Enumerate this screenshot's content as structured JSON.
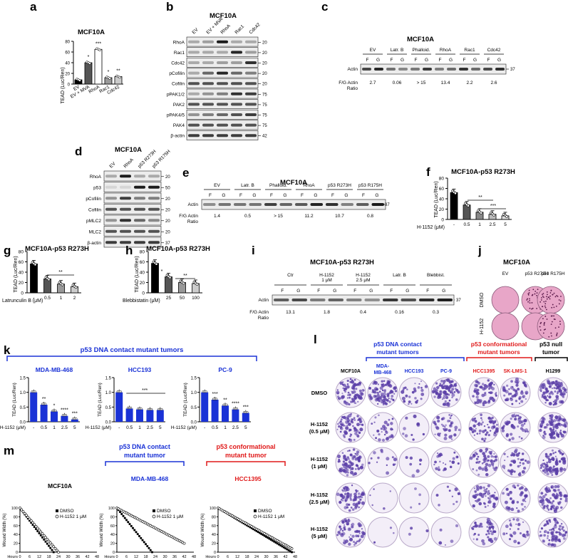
{
  "panels": {
    "a": {
      "label": "a",
      "title": "MCF10A",
      "ylabel": "TEAD (Luc/Ren)",
      "categories": [
        "EV",
        "EV + MVA",
        "RhoA",
        "Rac1",
        "Cdc42"
      ],
      "values": [
        8,
        40,
        65,
        12,
        14
      ],
      "ylim": [
        0,
        80
      ],
      "yticks": [
        "0",
        "20",
        "40",
        "60",
        "80"
      ],
      "sig": [
        "",
        "*",
        "***",
        "*",
        "**"
      ],
      "colors": [
        "#000000",
        "#555555",
        "#ffffff",
        "#999999",
        "#cccccc"
      ]
    },
    "b": {
      "label": "b",
      "title": "MCF10A",
      "lanes": [
        "EV",
        "EV + MVA",
        "RhoA",
        "Rac1",
        "Cdc42"
      ],
      "rows": [
        "RhoA",
        "Rac1",
        "Cdc42",
        "pCofilin",
        "Cofilin",
        "pPAK1/2",
        "PAK2",
        "pPAK4/5",
        "PAK4",
        "β-actin"
      ],
      "mw": [
        "20",
        "20",
        "20",
        "20",
        "20",
        "75",
        "75",
        "75",
        "75",
        "42"
      ]
    },
    "c": {
      "label": "c",
      "title": "MCF10A",
      "groups": [
        "EV",
        "Latr. B",
        "Phalloid.",
        "RhoA",
        "Rac1",
        "Cdc42"
      ],
      "fg": [
        "F",
        "G"
      ],
      "row": "Actin",
      "mw": "37",
      "ratio_label_1": "F/G Actin",
      "ratio_label_2": "Ratio",
      "ratios": [
        "2.7",
        "0.06",
        "> 15",
        "13.4",
        "2.2",
        "2.6"
      ]
    },
    "d": {
      "label": "d",
      "title": "MCF10A",
      "lanes": [
        "EV",
        "RhoA",
        "p53 R273H",
        "p53 R175H"
      ],
      "rows": [
        "RhoA",
        "p53",
        "pCofilin",
        "Cofilin",
        "pMLC2",
        "MLC2",
        "β-actin"
      ],
      "mw": [
        "20",
        "50",
        "20",
        "20",
        "20",
        "20",
        "37"
      ]
    },
    "e": {
      "label": "e",
      "title": "MCF10A",
      "groups": [
        "EV",
        "Latr. B",
        "Phalloid.",
        "RhoA",
        "p53 R273H",
        "p53 R175H"
      ],
      "fg": [
        "F",
        "G"
      ],
      "row": "Actin",
      "mw": "37",
      "ratio_label_1": "F/G Actin",
      "ratio_label_2": "Ratio",
      "ratios": [
        "1.4",
        "0.5",
        "> 15",
        "11.2",
        "10.7",
        "0.8"
      ]
    },
    "f": {
      "label": "f",
      "title": "MCF10A-p53 R273H",
      "ylabel": "TEAD (Luc/Ren)",
      "xlabel": "H-1152 (μM)",
      "categories": [
        "-",
        "0.5",
        "1",
        "2.5",
        "5"
      ],
      "values": [
        52,
        28,
        14,
        10,
        7
      ],
      "ylim": [
        0,
        80
      ],
      "yticks": [
        "0",
        "20",
        "40",
        "60",
        "80"
      ],
      "sig_1": "**",
      "sig_2": "***"
    },
    "g": {
      "label": "g",
      "title": "MCF10A-p53 R273H",
      "ylabel": "TEAD (Luc/Ren)",
      "xlabel": "Latrunculin B (μM)",
      "categories": [
        "-",
        "0.5",
        "1",
        "2"
      ],
      "values": [
        56,
        27,
        17,
        12
      ],
      "ylim": [
        0,
        80
      ],
      "yticks": [
        "0",
        "20",
        "40",
        "60",
        "80"
      ],
      "sig": "**"
    },
    "h": {
      "label": "h",
      "title": "MCF10A-p53 R273H",
      "ylabel": "TEAD (Luc/Ren)",
      "xlabel": "Blebbistatin (μM)",
      "categories": [
        "-",
        "25",
        "50",
        "100"
      ],
      "values": [
        57,
        31,
        20,
        18
      ],
      "ylim": [
        0,
        80
      ],
      "yticks": [
        "0",
        "20",
        "40",
        "60",
        "80"
      ],
      "sig_1": "*",
      "sig_2": "**"
    },
    "i": {
      "label": "i",
      "title": "MCF10A-p53 R273H",
      "groups": [
        "Ctr",
        "H-1152\n1 μM",
        "H-1152\n2.5 μM",
        "Latr. B",
        "Blebbist."
      ],
      "groups_l1": [
        "Ctr",
        "H-1152",
        "H-1152",
        "Latr. B",
        "Blebbist."
      ],
      "groups_l2": [
        "",
        "1 μM",
        "2.5 μM",
        "",
        ""
      ],
      "fg": [
        "F",
        "G"
      ],
      "row": "Actin",
      "mw": "37",
      "ratio_label_1": "F/G Actin",
      "ratio_label_2": "Ratio",
      "ratios": [
        "13.1",
        "1.8",
        "0.4",
        "0.16",
        "0.3"
      ]
    },
    "j": {
      "label": "j",
      "title": "MCF10A",
      "cols": [
        "EV",
        "p53 R273H",
        "p53 R175H"
      ],
      "rows": [
        "DMSO",
        "H-1152"
      ]
    },
    "k": {
      "label": "k",
      "group_title": "p53 DNA contact mutant tumors",
      "xlabel": "H-1152 (μM)",
      "ylabel": "TEAD (Luc/Ren)",
      "categories": [
        "-",
        "0.5",
        "1",
        "2.5",
        "5"
      ],
      "yticks": [
        "0.0",
        "0.5",
        "1.0",
        "1.5"
      ],
      "charts": [
        {
          "title": "MDA-MB-468",
          "values": [
            1.0,
            0.58,
            0.35,
            0.2,
            0.08
          ],
          "sig": [
            "",
            "**",
            "*",
            "****",
            "***"
          ]
        },
        {
          "title": "HCC193",
          "values": [
            1.0,
            0.45,
            0.42,
            0.4,
            0.4
          ],
          "sig": [
            "",
            "",
            "",
            "",
            ""
          ],
          "bracket_sig": "***"
        },
        {
          "title": "PC-9",
          "values": [
            1.0,
            0.75,
            0.55,
            0.42,
            0.3
          ],
          "sig": [
            "",
            "***",
            "**",
            "****",
            "***"
          ]
        }
      ]
    },
    "l": {
      "label": "l",
      "group_contact": "p53 DNA contact",
      "group_contact_2": "mutant tumors",
      "group_conf": "p53 conformational",
      "group_conf_2": "mutant tumors",
      "group_null": "p53 null",
      "group_null_2": "tumor",
      "cols": [
        "MCF10A",
        "MDA-\nMB-468",
        "HCC193",
        "PC-9",
        "HCC1395",
        "SK-LMS-1",
        "H1299"
      ],
      "col_l1": [
        "MCF10A",
        "MDA-",
        "HCC193",
        "PC-9",
        "HCC1395",
        "SK-LMS-1",
        "H1299"
      ],
      "col_l2": [
        "",
        "MB-468",
        "",
        "",
        "",
        "",
        ""
      ],
      "rows_l1": [
        "DMSO",
        "H-1152",
        "H-1152",
        "H-1152",
        "H-1152"
      ],
      "rows_l2": [
        "",
        "(0.5 μM)",
        "(1 μM)",
        "(2.5 μM)",
        "(5 μM)"
      ],
      "density": [
        [
          0.85,
          0.95,
          0.3,
          0.9,
          0.7,
          0.6,
          0.9
        ],
        [
          0.8,
          0.35,
          0.12,
          0.45,
          0.65,
          0.5,
          0.85
        ],
        [
          0.75,
          0.15,
          0.08,
          0.25,
          0.6,
          0.45,
          0.85
        ],
        [
          0.75,
          0.05,
          0.04,
          0.1,
          0.55,
          0.4,
          0.8
        ],
        [
          0.7,
          0.03,
          0.03,
          0.05,
          0.5,
          0.3,
          0.75
        ]
      ]
    },
    "m": {
      "label": "m",
      "group_contact": "p53 DNA contact",
      "group_contact_2": "mutant tumor",
      "group_conf": "p53 conformational",
      "group_conf_2": "mutant tumor",
      "ylabel": "Wound Width (%)",
      "xlabel": "Hours",
      "xticks": [
        "0",
        "6",
        "12",
        "18",
        "24",
        "30",
        "36",
        "42",
        "48"
      ],
      "yticks": [
        "0",
        "20",
        "40",
        "60",
        "80",
        "100"
      ],
      "legend": [
        "DMSO",
        "H-1152 1 μM"
      ],
      "charts": [
        {
          "title": "MCF10A",
          "dmso_end": 21,
          "h_end": 24,
          "h_plateau": 0
        },
        {
          "title": "MDA-MB-468",
          "dmso_end": 22,
          "h_end": 42,
          "h_plateau": 20
        },
        {
          "title": "HCC1395",
          "dmso_end": 46,
          "h_end": 46,
          "h_plateau": 8
        }
      ]
    }
  },
  "colors": {
    "blue": "#1a32d6",
    "red": "#e01919",
    "bar_black": "#000000"
  }
}
